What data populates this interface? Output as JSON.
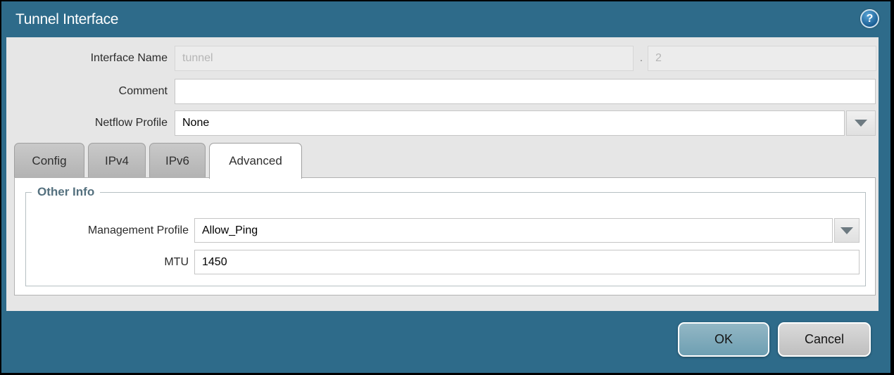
{
  "dialog": {
    "title": "Tunnel Interface",
    "help_glyph": "?"
  },
  "form": {
    "interface_name": {
      "label": "Interface Name",
      "base_value": "tunnel",
      "separator": ".",
      "suffix_value": "2"
    },
    "comment": {
      "label": "Comment",
      "value": ""
    },
    "netflow_profile": {
      "label": "Netflow Profile",
      "value": "None"
    }
  },
  "tabs": [
    {
      "label": "Config",
      "active": false
    },
    {
      "label": "IPv4",
      "active": false
    },
    {
      "label": "IPv6",
      "active": false
    },
    {
      "label": "Advanced",
      "active": true
    }
  ],
  "advanced_tab": {
    "section_title": "Other Info",
    "management_profile": {
      "label": "Management Profile",
      "value": "Allow_Ping"
    },
    "mtu": {
      "label": "MTU",
      "value": "1450"
    }
  },
  "footer": {
    "ok_label": "OK",
    "cancel_label": "Cancel"
  },
  "colors": {
    "titlebar_teal": "#2e6b8a",
    "content_gray": "#e6e6e6",
    "active_tab_bg": "#ffffff",
    "inactive_tab_bg": "#bcbcbc",
    "section_title_color": "#54707e",
    "ok_button_bg": "#7da9bb",
    "cancel_button_bg": "#cacaca",
    "help_icon_bg": "#2a77ad"
  }
}
